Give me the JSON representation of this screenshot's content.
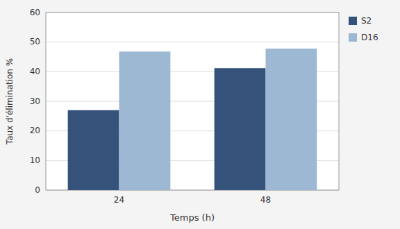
{
  "chart_data": {
    "type": "bar",
    "categories": [
      "24",
      "48"
    ],
    "series": [
      {
        "name": "S2",
        "color": "#34527A",
        "values": [
          27,
          41.2
        ]
      },
      {
        "name": "D16",
        "color": "#9DB8D2",
        "values": [
          46.8,
          47.8
        ]
      }
    ],
    "xlabel": "Temps (h)",
    "ylabel": "Taux d'élimination %",
    "ylim": [
      0,
      60
    ],
    "yticks": [
      0,
      10,
      20,
      30,
      40,
      50,
      60
    ],
    "grid": true,
    "legend": "upper right"
  }
}
